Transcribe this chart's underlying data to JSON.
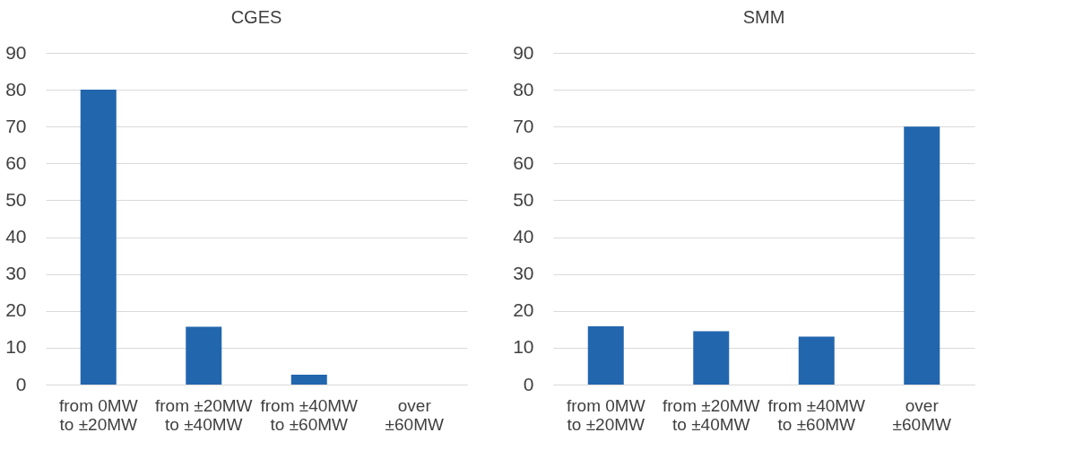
{
  "chart_data": [
    {
      "type": "bar",
      "title": "CGES",
      "categories": [
        "from 0MW to ±20MW",
        "from ±20MW to ±40MW",
        "from ±40MW to ±60MW",
        "over ±60MW"
      ],
      "values": [
        80,
        15.7,
        2.7,
        0
      ],
      "color": "#2266ae",
      "ylim": [
        0,
        90
      ],
      "yticks": [
        0,
        10,
        20,
        30,
        40,
        50,
        60,
        70,
        80,
        90
      ],
      "grid": "y"
    },
    {
      "type": "bar",
      "title": "SMM",
      "categories": [
        "from 0MW to ±20MW",
        "from ±20MW to ±40MW",
        "from ±40MW to ±60MW",
        "over ±60MW"
      ],
      "values": [
        15.8,
        14.5,
        13,
        70
      ],
      "color": "#2266ae",
      "ylim": [
        0,
        90
      ],
      "yticks": [
        0,
        10,
        20,
        30,
        40,
        50,
        60,
        70,
        80,
        90
      ],
      "grid": "y"
    }
  ]
}
